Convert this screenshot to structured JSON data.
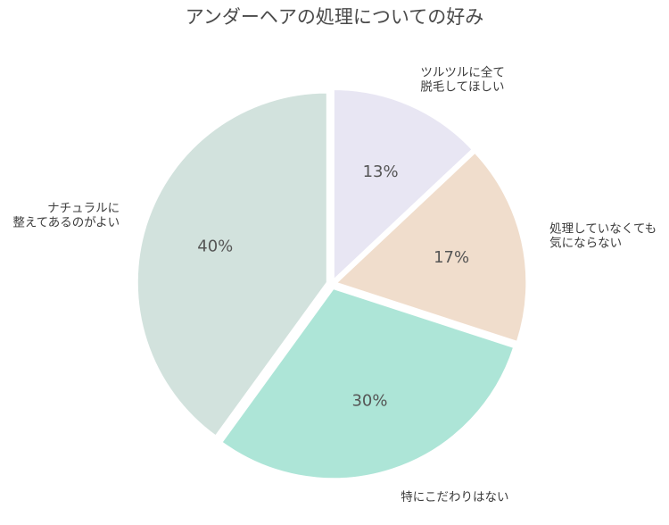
{
  "chart_data": {
    "type": "pie",
    "title": "アンダーヘアの処理についての好み",
    "start_angle_deg": 90,
    "direction": "clockwise",
    "slices": [
      {
        "label": "ツルツルに全て\n脱毛してほしい",
        "value": 13,
        "percent_text": "13%",
        "color": "#e8e6f3"
      },
      {
        "label": "処理していなくても\n気にならない",
        "value": 17,
        "percent_text": "17%",
        "color": "#f0ddcc"
      },
      {
        "label": "特にこだわりはない",
        "value": 30,
        "percent_text": "30%",
        "color": "#ade5d7"
      },
      {
        "label": "ナチュラルに\n整えてあるのがよい",
        "value": 40,
        "percent_text": "40%",
        "color": "#d2e2dd"
      }
    ]
  }
}
